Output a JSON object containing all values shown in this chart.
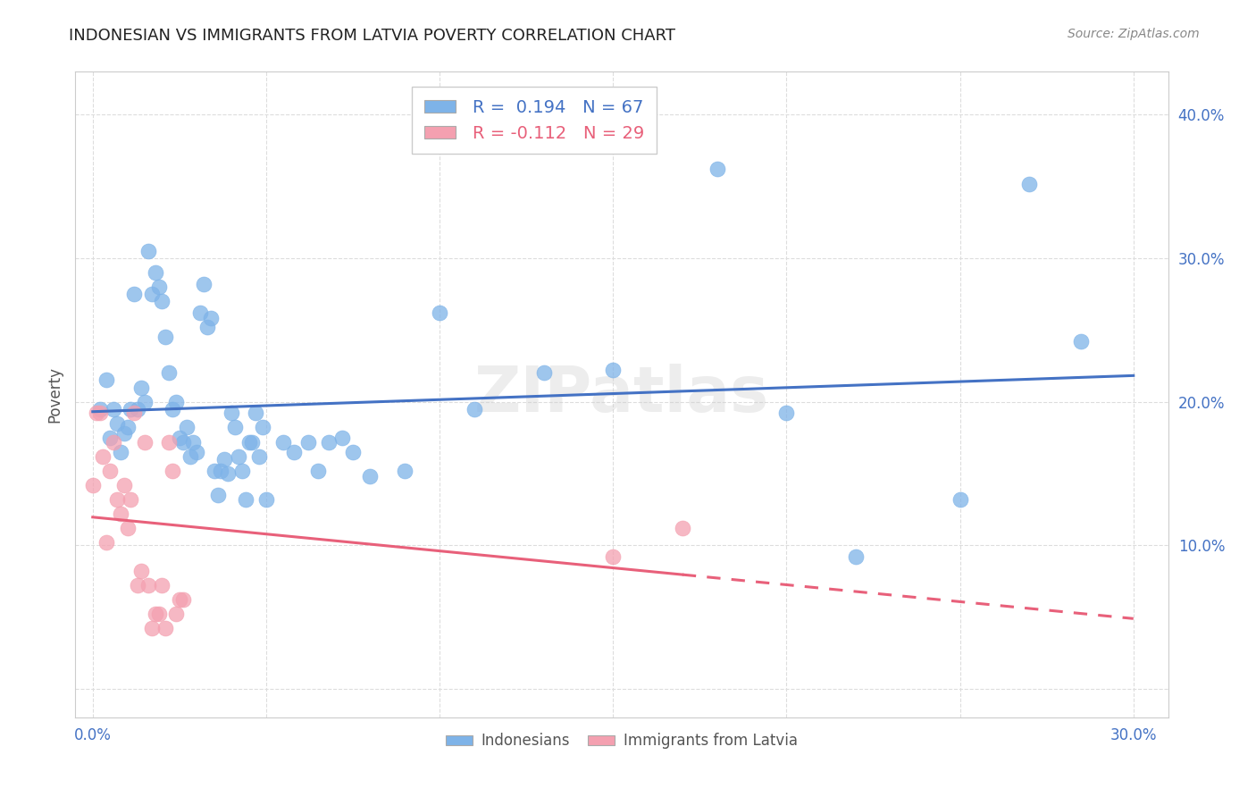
{
  "title": "INDONESIAN VS IMMIGRANTS FROM LATVIA POVERTY CORRELATION CHART",
  "source": "Source: ZipAtlas.com",
  "ylabel": "Poverty",
  "y_ticks": [
    0.0,
    0.1,
    0.2,
    0.3,
    0.4
  ],
  "y_tick_labels": [
    "",
    "10.0%",
    "20.0%",
    "30.0%",
    "40.0%"
  ],
  "x_tick_positions": [
    0.0,
    0.05,
    0.1,
    0.15,
    0.2,
    0.25,
    0.3
  ],
  "x_tick_labels": [
    "0.0%",
    "",
    "",
    "",
    "",
    "",
    "30.0%"
  ],
  "xlim": [
    -0.005,
    0.31
  ],
  "ylim": [
    -0.02,
    0.43
  ],
  "blue_color": "#7EB3E8",
  "pink_color": "#F4A0B0",
  "blue_line_color": "#4472C4",
  "pink_line_color": "#E8607A",
  "R_blue": 0.194,
  "N_blue": 67,
  "R_pink": -0.112,
  "N_pink": 29,
  "legend_label_blue": "Indonesians",
  "legend_label_pink": "Immigrants from Latvia",
  "indonesian_x": [
    0.002,
    0.004,
    0.005,
    0.006,
    0.007,
    0.008,
    0.009,
    0.01,
    0.011,
    0.012,
    0.013,
    0.014,
    0.015,
    0.016,
    0.017,
    0.018,
    0.019,
    0.02,
    0.021,
    0.022,
    0.023,
    0.024,
    0.025,
    0.026,
    0.027,
    0.028,
    0.029,
    0.03,
    0.031,
    0.032,
    0.033,
    0.034,
    0.035,
    0.036,
    0.037,
    0.038,
    0.039,
    0.04,
    0.041,
    0.042,
    0.043,
    0.044,
    0.045,
    0.046,
    0.047,
    0.048,
    0.049,
    0.05,
    0.055,
    0.058,
    0.062,
    0.065,
    0.068,
    0.072,
    0.075,
    0.08,
    0.09,
    0.1,
    0.11,
    0.13,
    0.15,
    0.18,
    0.2,
    0.22,
    0.25,
    0.27,
    0.285
  ],
  "indonesian_y": [
    0.195,
    0.215,
    0.175,
    0.195,
    0.185,
    0.165,
    0.178,
    0.182,
    0.195,
    0.275,
    0.195,
    0.21,
    0.2,
    0.305,
    0.275,
    0.29,
    0.28,
    0.27,
    0.245,
    0.22,
    0.195,
    0.2,
    0.175,
    0.172,
    0.182,
    0.162,
    0.172,
    0.165,
    0.262,
    0.282,
    0.252,
    0.258,
    0.152,
    0.135,
    0.152,
    0.16,
    0.15,
    0.192,
    0.182,
    0.162,
    0.152,
    0.132,
    0.172,
    0.172,
    0.192,
    0.162,
    0.182,
    0.132,
    0.172,
    0.165,
    0.172,
    0.152,
    0.172,
    0.175,
    0.165,
    0.148,
    0.152,
    0.262,
    0.195,
    0.22,
    0.222,
    0.362,
    0.192,
    0.092,
    0.132,
    0.352,
    0.242
  ],
  "latvia_x": [
    0.0,
    0.001,
    0.002,
    0.003,
    0.004,
    0.005,
    0.006,
    0.007,
    0.008,
    0.009,
    0.01,
    0.011,
    0.012,
    0.013,
    0.014,
    0.015,
    0.016,
    0.017,
    0.018,
    0.019,
    0.02,
    0.021,
    0.022,
    0.023,
    0.024,
    0.025,
    0.026,
    0.15,
    0.17
  ],
  "latvia_y": [
    0.142,
    0.192,
    0.192,
    0.162,
    0.102,
    0.152,
    0.172,
    0.132,
    0.122,
    0.142,
    0.112,
    0.132,
    0.192,
    0.072,
    0.082,
    0.172,
    0.072,
    0.042,
    0.052,
    0.052,
    0.072,
    0.042,
    0.172,
    0.152,
    0.052,
    0.062,
    0.062,
    0.092,
    0.112
  ]
}
